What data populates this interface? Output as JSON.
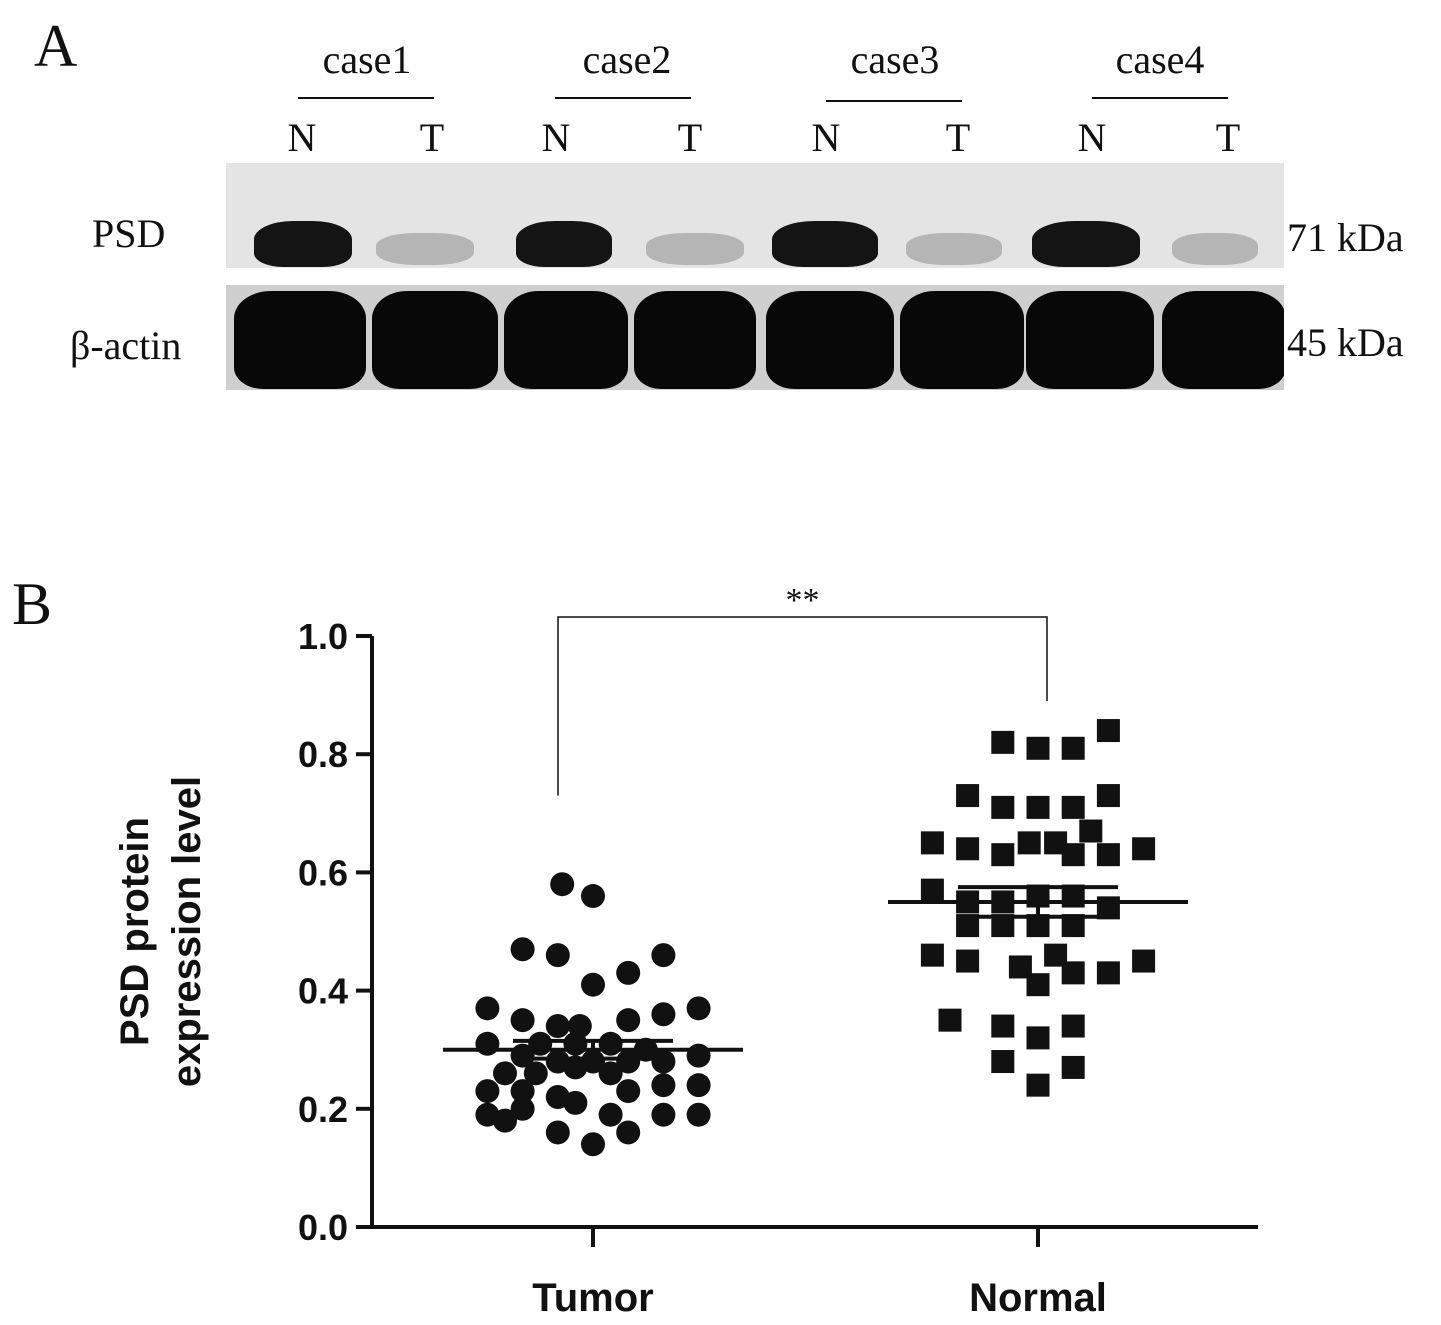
{
  "panel_a": {
    "label": "A",
    "cases": [
      "case1",
      "case2",
      "case3",
      "case4"
    ],
    "lanes": [
      "N",
      "T",
      "N",
      "T",
      "N",
      "T",
      "N",
      "T"
    ],
    "rows": [
      {
        "name": "PSD",
        "size": "71 kDa"
      },
      {
        "name": "β-actin",
        "size": "45 kDa"
      }
    ]
  },
  "panel_b": {
    "label": "B"
  },
  "chart_data": {
    "type": "scatter",
    "title": "",
    "xlabel": "",
    "ylabel": "PSD protein expression level",
    "categories": [
      "Tumor",
      "Normal"
    ],
    "ylim": [
      0.0,
      1.0
    ],
    "yticks": [
      "0.0",
      "0.2",
      "0.4",
      "0.6",
      "0.8",
      "1.0"
    ],
    "significance": "**",
    "series": [
      {
        "category": "Tumor",
        "marker": "circle",
        "mean": 0.3,
        "sem": 0.015,
        "points": [
          {
            "x": -0.07,
            "y": 0.58
          },
          {
            "x": 0.0,
            "y": 0.56
          },
          {
            "x": -0.16,
            "y": 0.47
          },
          {
            "x": -0.08,
            "y": 0.46
          },
          {
            "x": 0.08,
            "y": 0.43
          },
          {
            "x": 0.16,
            "y": 0.46
          },
          {
            "x": 0.0,
            "y": 0.41
          },
          {
            "x": -0.24,
            "y": 0.37
          },
          {
            "x": -0.16,
            "y": 0.35
          },
          {
            "x": -0.08,
            "y": 0.34
          },
          {
            "x": -0.03,
            "y": 0.34
          },
          {
            "x": 0.08,
            "y": 0.35
          },
          {
            "x": 0.16,
            "y": 0.36
          },
          {
            "x": 0.24,
            "y": 0.37
          },
          {
            "x": -0.24,
            "y": 0.31
          },
          {
            "x": -0.12,
            "y": 0.31
          },
          {
            "x": -0.04,
            "y": 0.31
          },
          {
            "x": 0.04,
            "y": 0.31
          },
          {
            "x": 0.12,
            "y": 0.3
          },
          {
            "x": -0.16,
            "y": 0.29
          },
          {
            "x": -0.08,
            "y": 0.28
          },
          {
            "x": 0.0,
            "y": 0.28
          },
          {
            "x": 0.08,
            "y": 0.28
          },
          {
            "x": 0.16,
            "y": 0.28
          },
          {
            "x": 0.24,
            "y": 0.29
          },
          {
            "x": -0.2,
            "y": 0.26
          },
          {
            "x": -0.13,
            "y": 0.26
          },
          {
            "x": -0.04,
            "y": 0.27
          },
          {
            "x": 0.04,
            "y": 0.26
          },
          {
            "x": -0.24,
            "y": 0.23
          },
          {
            "x": -0.16,
            "y": 0.23
          },
          {
            "x": -0.08,
            "y": 0.22
          },
          {
            "x": 0.08,
            "y": 0.23
          },
          {
            "x": 0.16,
            "y": 0.24
          },
          {
            "x": 0.24,
            "y": 0.24
          },
          {
            "x": -0.24,
            "y": 0.19
          },
          {
            "x": -0.16,
            "y": 0.2
          },
          {
            "x": -0.04,
            "y": 0.21
          },
          {
            "x": 0.04,
            "y": 0.19
          },
          {
            "x": 0.16,
            "y": 0.19
          },
          {
            "x": 0.24,
            "y": 0.19
          },
          {
            "x": -0.2,
            "y": 0.18
          },
          {
            "x": -0.08,
            "y": 0.16
          },
          {
            "x": 0.08,
            "y": 0.16
          },
          {
            "x": 0.0,
            "y": 0.14
          }
        ]
      },
      {
        "category": "Normal",
        "marker": "square",
        "mean": 0.55,
        "sem": 0.025,
        "points": [
          {
            "x": -0.08,
            "y": 0.82
          },
          {
            "x": 0.0,
            "y": 0.81
          },
          {
            "x": 0.08,
            "y": 0.81
          },
          {
            "x": 0.16,
            "y": 0.84
          },
          {
            "x": -0.16,
            "y": 0.73
          },
          {
            "x": -0.08,
            "y": 0.71
          },
          {
            "x": 0.0,
            "y": 0.71
          },
          {
            "x": 0.08,
            "y": 0.71
          },
          {
            "x": 0.16,
            "y": 0.73
          },
          {
            "x": -0.24,
            "y": 0.65
          },
          {
            "x": -0.16,
            "y": 0.64
          },
          {
            "x": -0.08,
            "y": 0.63
          },
          {
            "x": -0.02,
            "y": 0.65
          },
          {
            "x": 0.04,
            "y": 0.65
          },
          {
            "x": 0.12,
            "y": 0.67
          },
          {
            "x": 0.08,
            "y": 0.63
          },
          {
            "x": 0.16,
            "y": 0.63
          },
          {
            "x": 0.24,
            "y": 0.64
          },
          {
            "x": -0.24,
            "y": 0.57
          },
          {
            "x": -0.16,
            "y": 0.55
          },
          {
            "x": -0.08,
            "y": 0.55
          },
          {
            "x": 0.0,
            "y": 0.56
          },
          {
            "x": 0.08,
            "y": 0.56
          },
          {
            "x": 0.16,
            "y": 0.54
          },
          {
            "x": -0.16,
            "y": 0.51
          },
          {
            "x": -0.08,
            "y": 0.51
          },
          {
            "x": 0.0,
            "y": 0.51
          },
          {
            "x": 0.08,
            "y": 0.51
          },
          {
            "x": -0.24,
            "y": 0.46
          },
          {
            "x": -0.16,
            "y": 0.45
          },
          {
            "x": -0.04,
            "y": 0.44
          },
          {
            "x": 0.04,
            "y": 0.46
          },
          {
            "x": 0.08,
            "y": 0.43
          },
          {
            "x": 0.16,
            "y": 0.43
          },
          {
            "x": 0.24,
            "y": 0.45
          },
          {
            "x": 0.0,
            "y": 0.41
          },
          {
            "x": -0.2,
            "y": 0.35
          },
          {
            "x": -0.08,
            "y": 0.34
          },
          {
            "x": 0.08,
            "y": 0.34
          },
          {
            "x": -0.08,
            "y": 0.28
          },
          {
            "x": 0.0,
            "y": 0.32
          },
          {
            "x": 0.08,
            "y": 0.27
          },
          {
            "x": 0.0,
            "y": 0.24
          }
        ]
      }
    ]
  }
}
